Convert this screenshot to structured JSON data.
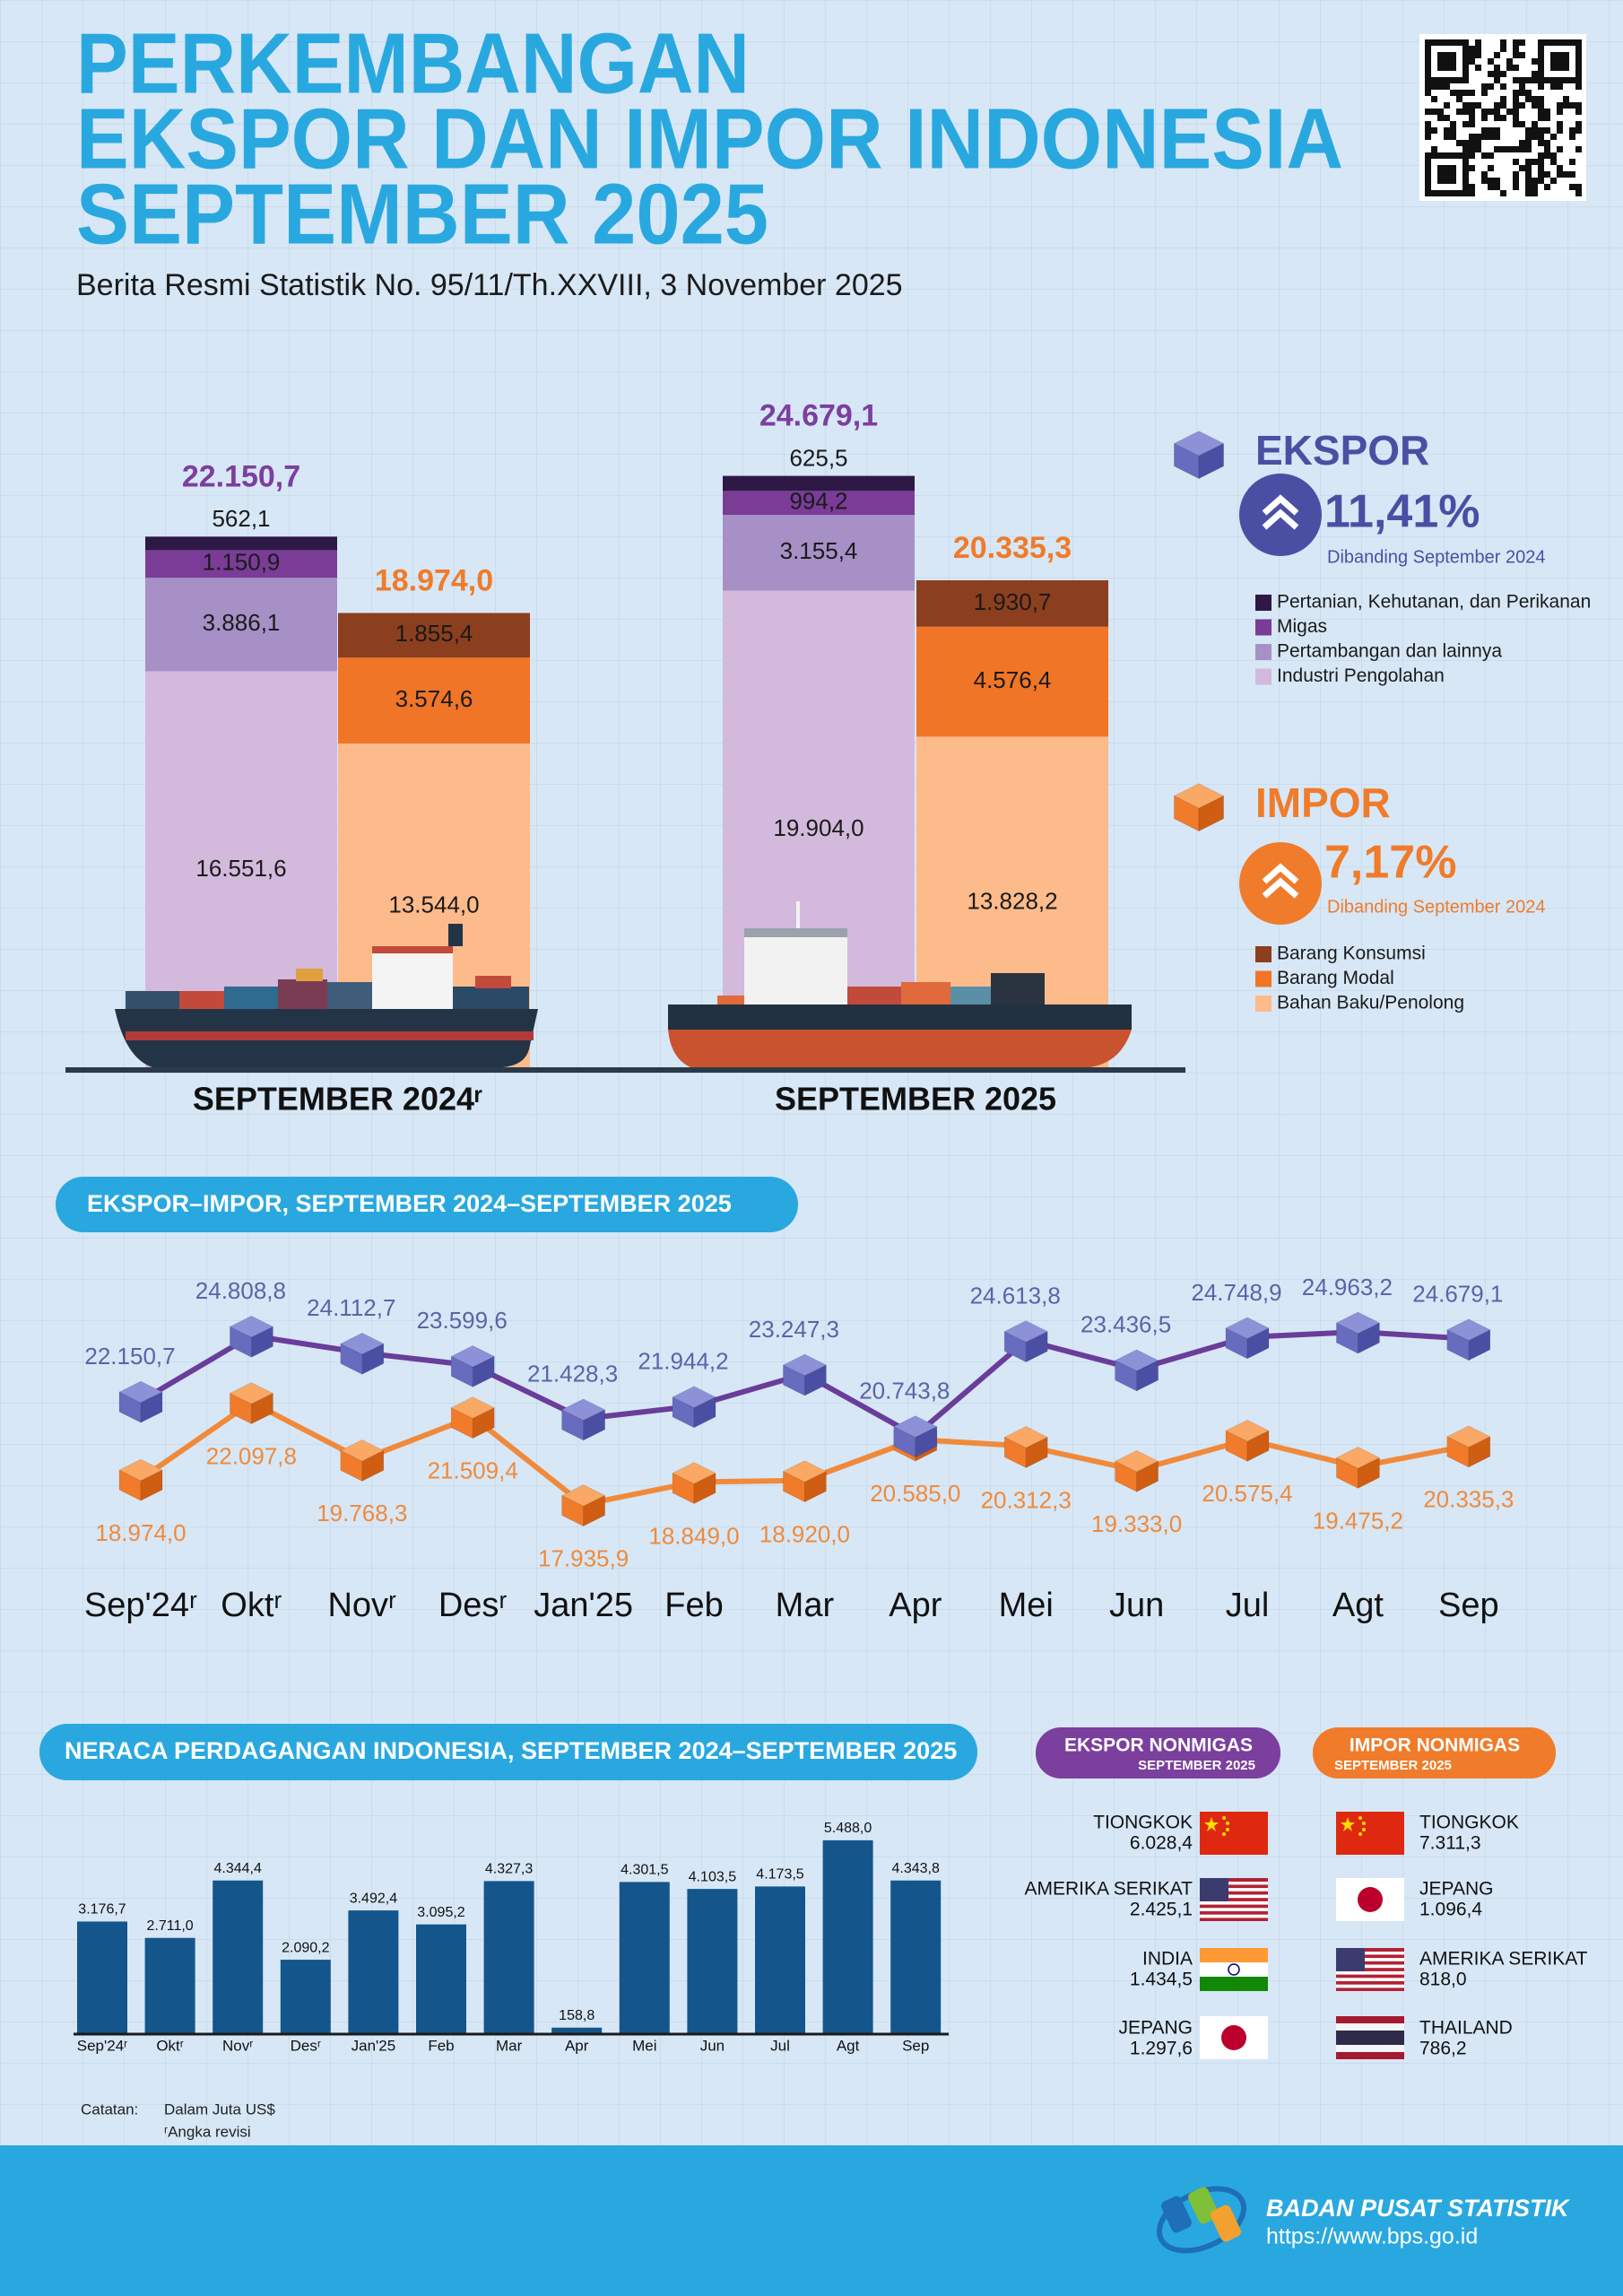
{
  "header": {
    "title_lines": [
      "PERKEMBANGAN",
      "EKSPOR DAN IMPOR INDONESIA",
      "SEPTEMBER 2025"
    ],
    "subtitle": "Berita Resmi Statistik No. 95/11/Th.XXVIII, 3 November 2025"
  },
  "chart_data": [
    {
      "type": "stacked_bar",
      "categories": [
        "SEPTEMBER 2024ʳ",
        "SEPTEMBER 2025"
      ],
      "groups": [
        {
          "name": "EKSPOR",
          "change": "11,41%",
          "note": "Dibanding September 2024",
          "color": "#4b4fa3",
          "total_color": "#7b3f9e",
          "totals": [
            22150.7,
            24679.1
          ],
          "total_labels": [
            "22.150,7",
            "24.679,1"
          ],
          "series": [
            {
              "name": "Pertanian, Kehutanan, dan Perikanan",
              "color": "#2d1846",
              "values": [
                562.1,
                625.5
              ],
              "value_labels": [
                "562,1",
                "625,5"
              ]
            },
            {
              "name": "Migas",
              "color": "#7a3c97",
              "values": [
                1150.9,
                994.2
              ],
              "value_labels": [
                "1.150,9",
                "994,2"
              ]
            },
            {
              "name": "Pertambangan dan lainnya",
              "color": "#a690c6",
              "values": [
                3886.1,
                3155.4
              ],
              "value_labels": [
                "3.886,1",
                "3.155,4"
              ]
            },
            {
              "name": "Industri Pengolahan",
              "color": "#d3b9dc",
              "values": [
                16551.6,
                19904.0
              ],
              "value_labels": [
                "16.551,6",
                "19.904,0"
              ]
            }
          ]
        },
        {
          "name": "IMPOR",
          "change": "7,17%",
          "note": "Dibanding September 2024",
          "color": "#f07b2a",
          "total_color": "#f07b2a",
          "totals": [
            18974.0,
            20335.3
          ],
          "total_labels": [
            "18.974,0",
            "20.335,3"
          ],
          "series": [
            {
              "name": "Barang Konsumsi",
              "color": "#8c3f1e",
              "values": [
                1855.4,
                1930.7
              ],
              "value_labels": [
                "1.855,4",
                "1.930,7"
              ]
            },
            {
              "name": "Barang Modal",
              "color": "#f07527",
              "values": [
                3574.6,
                4576.4
              ],
              "value_labels": [
                "3.574,6",
                "4.576,4"
              ]
            },
            {
              "name": "Bahan Baku/Penolong",
              "color": "#fdbb8c",
              "values": [
                13544.0,
                13828.2
              ],
              "value_labels": [
                "13.544,0",
                "13.828,2"
              ]
            }
          ]
        }
      ]
    },
    {
      "type": "line",
      "title": "EKSPOR–IMPOR, SEPTEMBER 2024–SEPTEMBER 2025",
      "categories": [
        "Sep'24ʳ",
        "Oktʳ",
        "Novʳ",
        "Desʳ",
        "Jan'25",
        "Feb",
        "Mar",
        "Apr",
        "Mei",
        "Jun",
        "Jul",
        "Agt",
        "Sep"
      ],
      "series": [
        {
          "color": "#6a3d9a",
          "label_color": "#5a64a6",
          "values": [
            22150.7,
            24808.8,
            24112.7,
            23599.6,
            21428.3,
            21944.2,
            23247.3,
            20743.8,
            24613.8,
            23436.5,
            24748.9,
            24963.2,
            24679.1
          ],
          "value_labels": [
            "22.150,7",
            "24.808,8",
            "24.112,7",
            "23.599,6",
            "21.428,3",
            "21.944,2",
            "23.247,3",
            "20.743,8",
            "24.613,8",
            "23.436,5",
            "24.748,9",
            "24.963,2",
            "24.679,1"
          ]
        },
        {
          "color": "#f08a3a",
          "label_color": "#f08a3a",
          "values": [
            18974.0,
            22097.8,
            19768.3,
            21509.4,
            17935.9,
            18849.0,
            18920.0,
            20585.0,
            20312.3,
            19333.0,
            20575.4,
            19475.2,
            20335.3
          ],
          "value_labels": [
            "18.974,0",
            "22.097,8",
            "19.768,3",
            "21.509,4",
            "17.935,9",
            "18.849,0",
            "18.920,0",
            "20.585,0",
            "20.312,3",
            "19.333,0",
            "20.575,4",
            "19.475,2",
            "20.335,3"
          ]
        }
      ]
    },
    {
      "type": "bar",
      "title": "NERACA PERDAGANGAN INDONESIA, SEPTEMBER 2024–SEPTEMBER 2025",
      "color": "#14568c",
      "categories": [
        "Sep'24ʳ",
        "Oktʳ",
        "Novʳ",
        "Desʳ",
        "Jan'25",
        "Feb",
        "Mar",
        "Apr",
        "Mei",
        "Jun",
        "Jul",
        "Agt",
        "Sep"
      ],
      "values": [
        3176.7,
        2711.0,
        4344.4,
        2090.2,
        3492.4,
        3095.2,
        4327.3,
        158.8,
        4301.5,
        4103.5,
        4173.5,
        5488.0,
        4343.8
      ],
      "value_labels": [
        "3.176,7",
        "2.711,0",
        "4.344,4",
        "2.090,2",
        "3.492,4",
        "3.095,2",
        "4.327,3",
        "158,8",
        "4.301,5",
        "4.103,5",
        "4.173,5",
        "5.488,0",
        "4.343,8"
      ]
    }
  ],
  "partners": {
    "ekspor": {
      "title": "EKSPOR NONMIGAS",
      "period": "SEPTEMBER 2025",
      "rows": [
        {
          "country": "TIONGKOK",
          "value": "6.028,4"
        },
        {
          "country": "AMERIKA SERIKAT",
          "value": "2.425,1"
        },
        {
          "country": "INDIA",
          "value": "1.434,5"
        },
        {
          "country": "JEPANG",
          "value": "1.297,6"
        }
      ]
    },
    "impor": {
      "title": "IMPOR NONMIGAS",
      "period": "SEPTEMBER 2025",
      "rows": [
        {
          "country": "TIONGKOK",
          "value": "7.311,3"
        },
        {
          "country": "JEPANG",
          "value": "1.096,4"
        },
        {
          "country": "AMERIKA SERIKAT",
          "value": "818,0"
        },
        {
          "country": "THAILAND",
          "value": "786,2"
        }
      ]
    }
  },
  "footer": {
    "note_label": "Catatan:",
    "notes": [
      "Dalam Juta US$",
      "ʳAngka revisi"
    ],
    "org": "BADAN PUSAT STATISTIK",
    "url": "https://www.bps.go.id"
  }
}
